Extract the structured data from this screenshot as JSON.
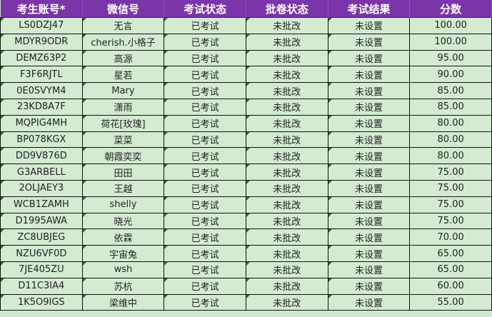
{
  "columns": [
    "考生账号*",
    "微信号",
    "考试状态",
    "批卷状态",
    "考试结果",
    "分数"
  ],
  "rows": [
    [
      "LS0DZJ47",
      "无言",
      "已考试",
      "未批改",
      "未设置",
      "100.00"
    ],
    [
      "MDYR9ODR",
      "cherish.小格子",
      "已考试",
      "未批改",
      "未设置",
      "100.00"
    ],
    [
      "DEMZ63P2",
      "高源",
      "已考试",
      "未批改",
      "未设置",
      "95.00"
    ],
    [
      "F3F6RJTL",
      "星若",
      "已考试",
      "未批改",
      "未设置",
      "90.00"
    ],
    [
      "0E0SVYM4",
      "Mary",
      "已考试",
      "未批改",
      "未设置",
      "85.00"
    ],
    [
      "23KD8A7F",
      "潇雨",
      "已考试",
      "未批改",
      "未设置",
      "85.00"
    ],
    [
      "MQPIG4MH",
      "荷花[玫瑰]",
      "已考试",
      "未批改",
      "未设置",
      "80.00"
    ],
    [
      "BP078KGX",
      "菜菜",
      "已考试",
      "未批改",
      "未设置",
      "80.00"
    ],
    [
      "DD9V876D",
      "朝霞奕奕",
      "已考试",
      "未批改",
      "未设置",
      "80.00"
    ],
    [
      "G3ARBELL",
      "田田",
      "已考试",
      "未批改",
      "未设置",
      "75.00"
    ],
    [
      "2OLJAEY3",
      "王越",
      "已考试",
      "未批改",
      "未设置",
      "75.00"
    ],
    [
      "WCB1ZAMH",
      "shelly",
      "已考试",
      "未批改",
      "未设置",
      "75.00"
    ],
    [
      "D1995AWA",
      "晓光",
      "已考试",
      "未批改",
      "未设置",
      "75.00"
    ],
    [
      "ZC8UBJEG",
      "依霖",
      "已考试",
      "未批改",
      "未设置",
      "70.00"
    ],
    [
      "NZU6VF0D",
      "宇宙兔",
      "已考试",
      "未批改",
      "未设置",
      "65.00"
    ],
    [
      "7JE405ZU",
      "wsh",
      "已考试",
      "未批改",
      "未设置",
      "65.00"
    ],
    [
      "D11C3IA4",
      "苏杭",
      "已考试",
      "未批改",
      "未设置",
      "60.00"
    ],
    [
      "1K5O9IGS",
      "梁维中",
      "已考试",
      "未批改",
      "未设置",
      "55.00"
    ]
  ],
  "colors": {
    "header_bg": "#7a35a8",
    "cell_bg": "#d4ebd2",
    "marker": "#1e7a1e"
  }
}
